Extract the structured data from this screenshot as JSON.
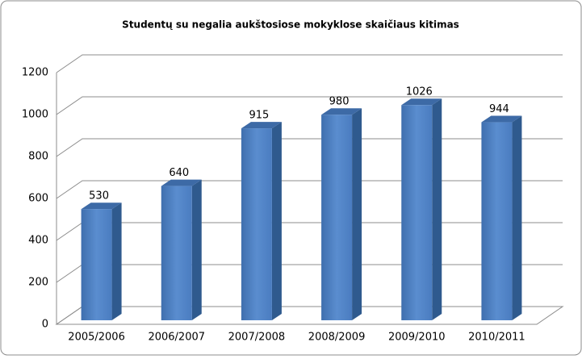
{
  "chart_data": {
    "type": "bar3d",
    "title": "Studentų su negalia aukštosiose mokyklose skaičiaus kitimas",
    "categories": [
      "2005/2006",
      "2006/2007",
      "2007/2008",
      "2008/2009",
      "2009/2010",
      "2010/2011"
    ],
    "values": [
      530,
      640,
      915,
      980,
      1026,
      944
    ],
    "color": "#4f81bd",
    "ylim": [
      0,
      1200
    ],
    "yticks": [
      0,
      200,
      400,
      600,
      800,
      1000,
      1200
    ],
    "grid": true,
    "data_labels": true
  }
}
